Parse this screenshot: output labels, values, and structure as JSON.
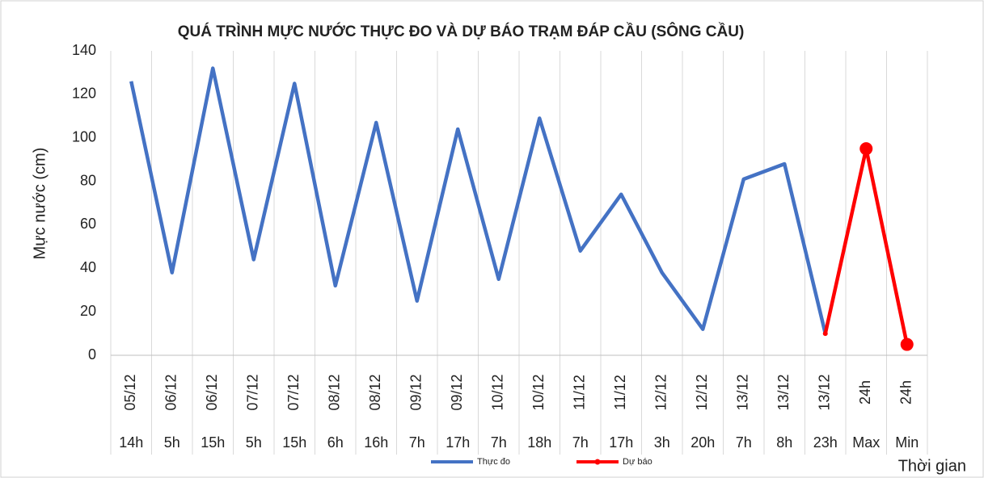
{
  "chart_data": {
    "type": "line",
    "title": "QUÁ TRÌNH MỰC NƯỚC THỰC ĐO VÀ DỰ BÁO TRẠM ĐÁP CẦU (SÔNG CẦU)",
    "y_label": "Mực nước (cm)",
    "x_label": "Thời gian",
    "categories": [
      "05/12",
      "06/12",
      "06/12",
      "07/12",
      "07/12",
      "08/12",
      "08/12",
      "09/12",
      "09/12",
      "10/12",
      "10/12",
      "11/12",
      "11/12",
      "12/12",
      "12/12",
      "13/12",
      "13/12",
      "13/12",
      "24h",
      "24h"
    ],
    "sub_categories": [
      "14h",
      "5h",
      "15h",
      "5h",
      "15h",
      "6h",
      "16h",
      "7h",
      "17h",
      "7h",
      "18h",
      "7h",
      "17h",
      "3h",
      "20h",
      "7h",
      "8h",
      "23h",
      "Max",
      "Min"
    ],
    "series": [
      {
        "name": "Thực đo",
        "color": "#4472c4",
        "marker": false,
        "values": [
          126,
          38,
          132,
          44,
          125,
          32,
          107,
          25,
          104,
          35,
          109,
          48,
          74,
          38,
          12,
          81,
          88,
          10,
          null,
          null
        ]
      },
      {
        "name": "Dự báo",
        "color": "#ff0000",
        "marker": true,
        "values": [
          null,
          null,
          null,
          null,
          null,
          null,
          null,
          null,
          null,
          null,
          null,
          null,
          null,
          null,
          null,
          null,
          null,
          10,
          95,
          5
        ]
      }
    ],
    "ylim": [
      0,
      140
    ],
    "yticks": [
      0,
      20,
      40,
      60,
      80,
      100,
      120,
      140
    ],
    "grid": false,
    "category_lines": true,
    "legend": "bottom"
  }
}
